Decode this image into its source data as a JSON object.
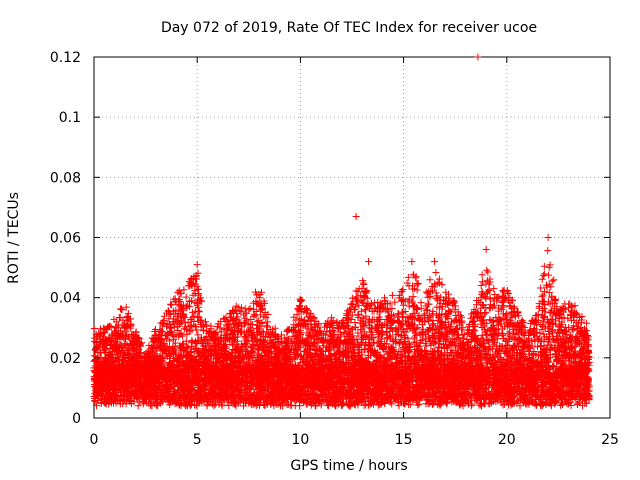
{
  "chart_data": {
    "type": "scatter",
    "title": "Day 072 of 2019, Rate Of TEC Index for receiver ucoe",
    "xlabel": "GPS time / hours",
    "ylabel": "ROTI / TECUs",
    "xlim": [
      0,
      25
    ],
    "ylim": [
      0,
      0.12
    ],
    "x_ticks": [
      0,
      5,
      10,
      15,
      20,
      25
    ],
    "x_tick_labels": [
      "0",
      "5",
      "10",
      "15",
      "20",
      "25"
    ],
    "y_ticks": [
      0,
      0.02,
      0.04,
      0.06,
      0.08,
      0.1,
      0.12
    ],
    "y_tick_labels": [
      "0",
      "0.02",
      "0.04",
      "0.06",
      "0.08",
      "0.1",
      "0.12"
    ],
    "grid": true,
    "marker": "plus",
    "color": "#ff0000",
    "series": [
      {
        "name": "ROTI",
        "x_range": [
          0,
          24
        ],
        "typical_range": [
          0.005,
          0.03
        ],
        "notable_points": [
          {
            "x": 12.7,
            "y": 0.067
          },
          {
            "x": 18.6,
            "y": 0.12
          },
          {
            "x": 22.0,
            "y": 0.06
          },
          {
            "x": 19.0,
            "y": 0.056
          },
          {
            "x": 13.3,
            "y": 0.052
          },
          {
            "x": 5.0,
            "y": 0.051
          },
          {
            "x": 16.5,
            "y": 0.052
          },
          {
            "x": 15.4,
            "y": 0.052
          }
        ]
      }
    ]
  }
}
